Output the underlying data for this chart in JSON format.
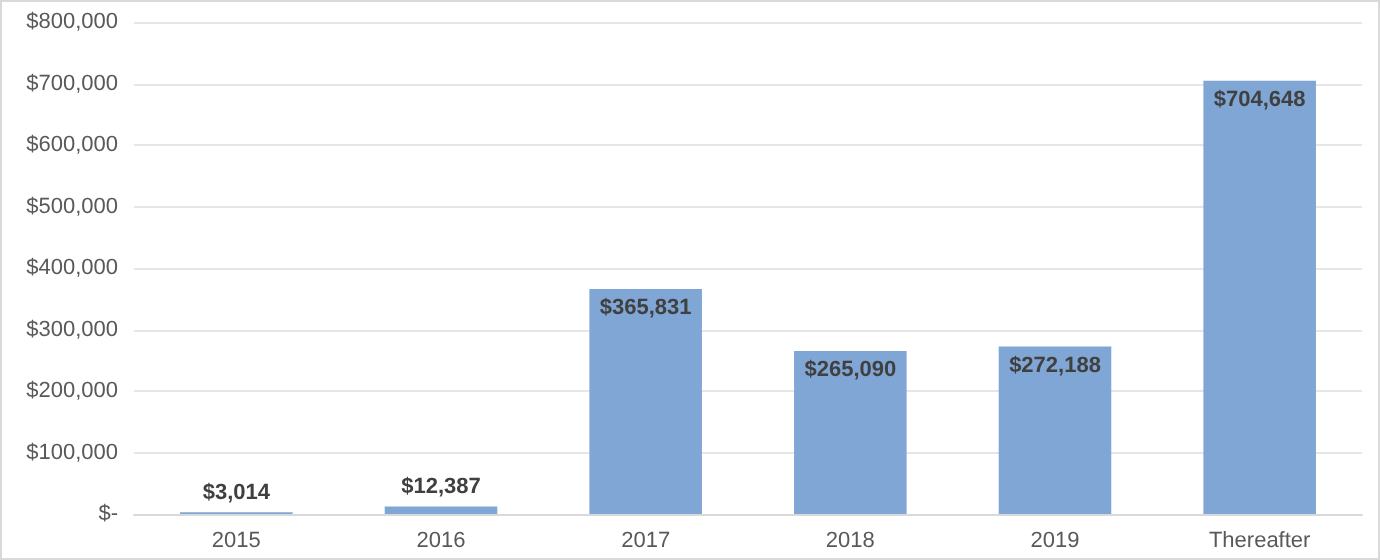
{
  "chart_data": {
    "type": "bar",
    "categories": [
      "2015",
      "2016",
      "2017",
      "2018",
      "2019",
      "Thereafter"
    ],
    "values": [
      3014,
      12387,
      365831,
      265090,
      272188,
      704648
    ],
    "value_labels": [
      "$3,014",
      "$12,387",
      "$365,831",
      "$265,090",
      "$272,188",
      "$704,648"
    ],
    "color": "#7fa6d4",
    "ylim": [
      0,
      800000
    ],
    "yticks": [
      {
        "value": 0,
        "label": "$-"
      },
      {
        "value": 100000,
        "label": "$100,000"
      },
      {
        "value": 200000,
        "label": "$200,000"
      },
      {
        "value": 300000,
        "label": "$300,000"
      },
      {
        "value": 400000,
        "label": "$400,000"
      },
      {
        "value": 500000,
        "label": "$500,000"
      },
      {
        "value": 600000,
        "label": "$600,000"
      },
      {
        "value": 700000,
        "label": "$700,000"
      },
      {
        "value": 800000,
        "label": "$800,000"
      }
    ],
    "grid": "y"
  }
}
